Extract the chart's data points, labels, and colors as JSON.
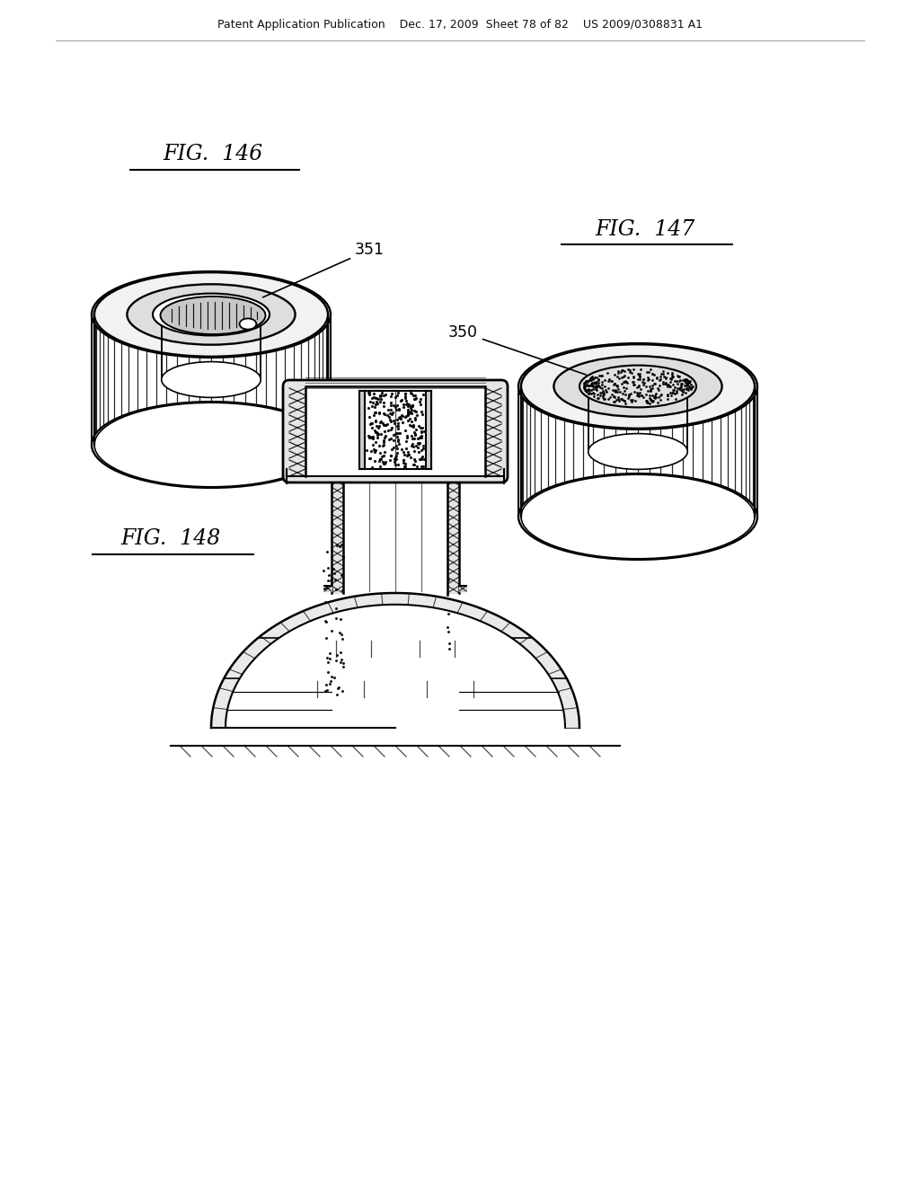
{
  "bg": "#ffffff",
  "header": "Patent Application Publication    Dec. 17, 2009  Sheet 78 of 82    US 2009/0308831 A1",
  "t146": "FIG.  146",
  "t147": "FIG.  147",
  "t148": "FIG.  148",
  "l351": "351",
  "l350": "350"
}
